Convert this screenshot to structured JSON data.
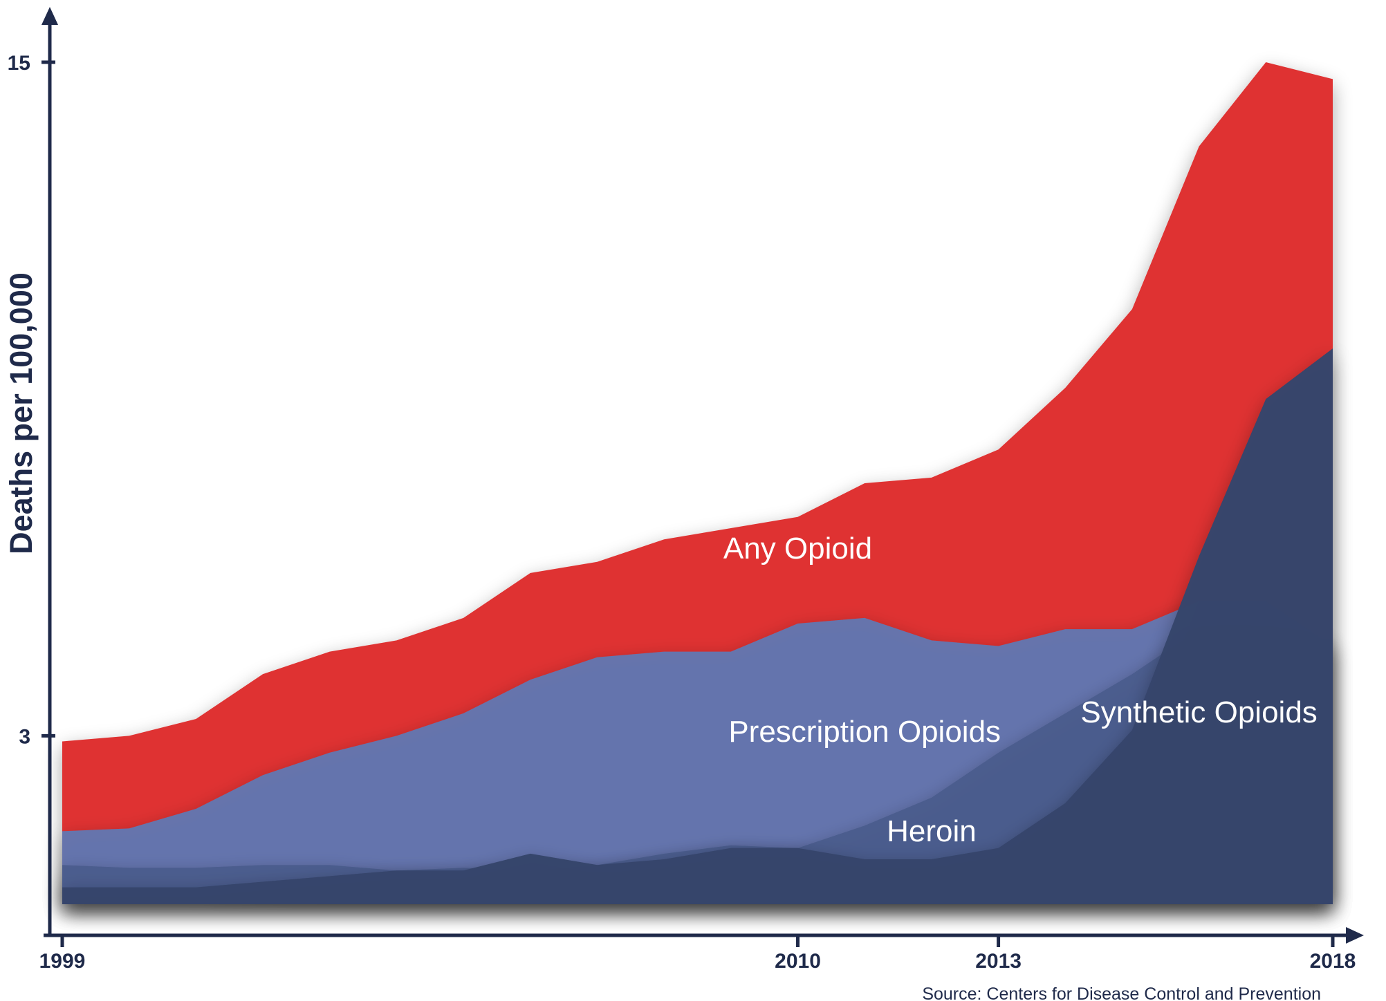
{
  "chart_data": {
    "type": "area",
    "ylabel": "Deaths per 100,000",
    "source": "Source: Centers for Disease Control and Prevention",
    "x_ticks": [
      "1999",
      "2010",
      "2013",
      "2018"
    ],
    "y_ticks": [
      "3",
      "15"
    ],
    "x": [
      1999,
      2000,
      2001,
      2002,
      2003,
      2004,
      2005,
      2006,
      2007,
      2008,
      2009,
      2010,
      2011,
      2012,
      2013,
      2014,
      2015,
      2016,
      2017,
      2018
    ],
    "xlim": [
      1999,
      2018
    ],
    "ylim": [
      0,
      15
    ],
    "series": [
      {
        "name": "Any Opioid",
        "label_year": 2010,
        "color": "#df3333",
        "values": [
          2.9,
          3.0,
          3.3,
          4.1,
          4.5,
          4.7,
          5.1,
          5.9,
          6.1,
          6.5,
          6.7,
          6.9,
          7.5,
          7.6,
          8.1,
          9.2,
          10.6,
          13.5,
          15.0,
          14.7
        ]
      },
      {
        "name": "Prescription Opioids",
        "label_year": 2011,
        "color": "#5d79b6",
        "values": [
          1.3,
          1.35,
          1.7,
          2.3,
          2.7,
          3.0,
          3.4,
          4.0,
          4.4,
          4.5,
          4.5,
          5.0,
          5.1,
          4.7,
          4.6,
          4.9,
          4.9,
          5.4,
          5.4,
          4.6
        ]
      },
      {
        "name": "Heroin",
        "label_year": 2012,
        "color": "#4a5c8c",
        "values": [
          0.7,
          0.65,
          0.65,
          0.7,
          0.7,
          0.6,
          0.65,
          0.6,
          0.7,
          0.9,
          1.05,
          1.0,
          1.4,
          1.9,
          2.7,
          3.4,
          4.1,
          4.9,
          4.9,
          4.7
        ]
      },
      {
        "name": "Synthetic Opioids",
        "label_year": 2016,
        "color": "#36456b",
        "values": [
          0.3,
          0.3,
          0.3,
          0.4,
          0.5,
          0.6,
          0.6,
          0.9,
          0.7,
          0.8,
          1.0,
          1.0,
          0.8,
          0.8,
          1.0,
          1.8,
          3.1,
          6.2,
          9.0,
          9.9
        ]
      }
    ]
  }
}
